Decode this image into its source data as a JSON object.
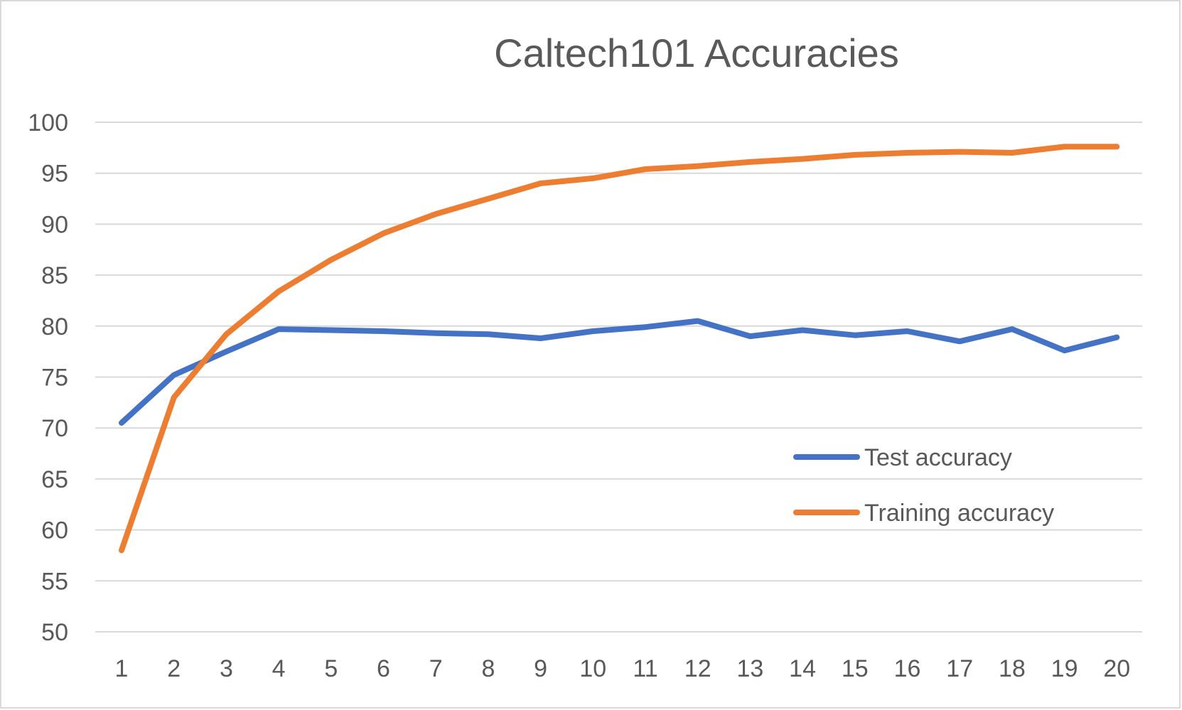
{
  "chart_data": {
    "type": "line",
    "title": "Caltech101 Accuracies",
    "xlabel": "",
    "ylabel": "",
    "x": [
      1,
      2,
      3,
      4,
      5,
      6,
      7,
      8,
      9,
      10,
      11,
      12,
      13,
      14,
      15,
      16,
      17,
      18,
      19,
      20
    ],
    "ylim": [
      50,
      100
    ],
    "yticks": [
      50,
      55,
      60,
      65,
      70,
      75,
      80,
      85,
      90,
      95,
      100
    ],
    "grid": true,
    "legend_position": "right-middle",
    "series": [
      {
        "name": "Test accuracy",
        "color": "#4472c4",
        "values": [
          70.5,
          75.2,
          77.5,
          79.7,
          79.6,
          79.5,
          79.3,
          79.2,
          78.8,
          79.5,
          79.9,
          80.5,
          79.0,
          79.6,
          79.1,
          79.5,
          78.5,
          79.7,
          77.6,
          78.9
        ]
      },
      {
        "name": "Training accuracy",
        "color": "#ed7d31",
        "values": [
          58.0,
          73.0,
          79.2,
          83.4,
          86.5,
          89.1,
          91.0,
          92.5,
          94.0,
          94.5,
          95.4,
          95.7,
          96.1,
          96.4,
          96.8,
          97.0,
          97.1,
          97.0,
          97.6,
          97.6
        ]
      }
    ]
  }
}
